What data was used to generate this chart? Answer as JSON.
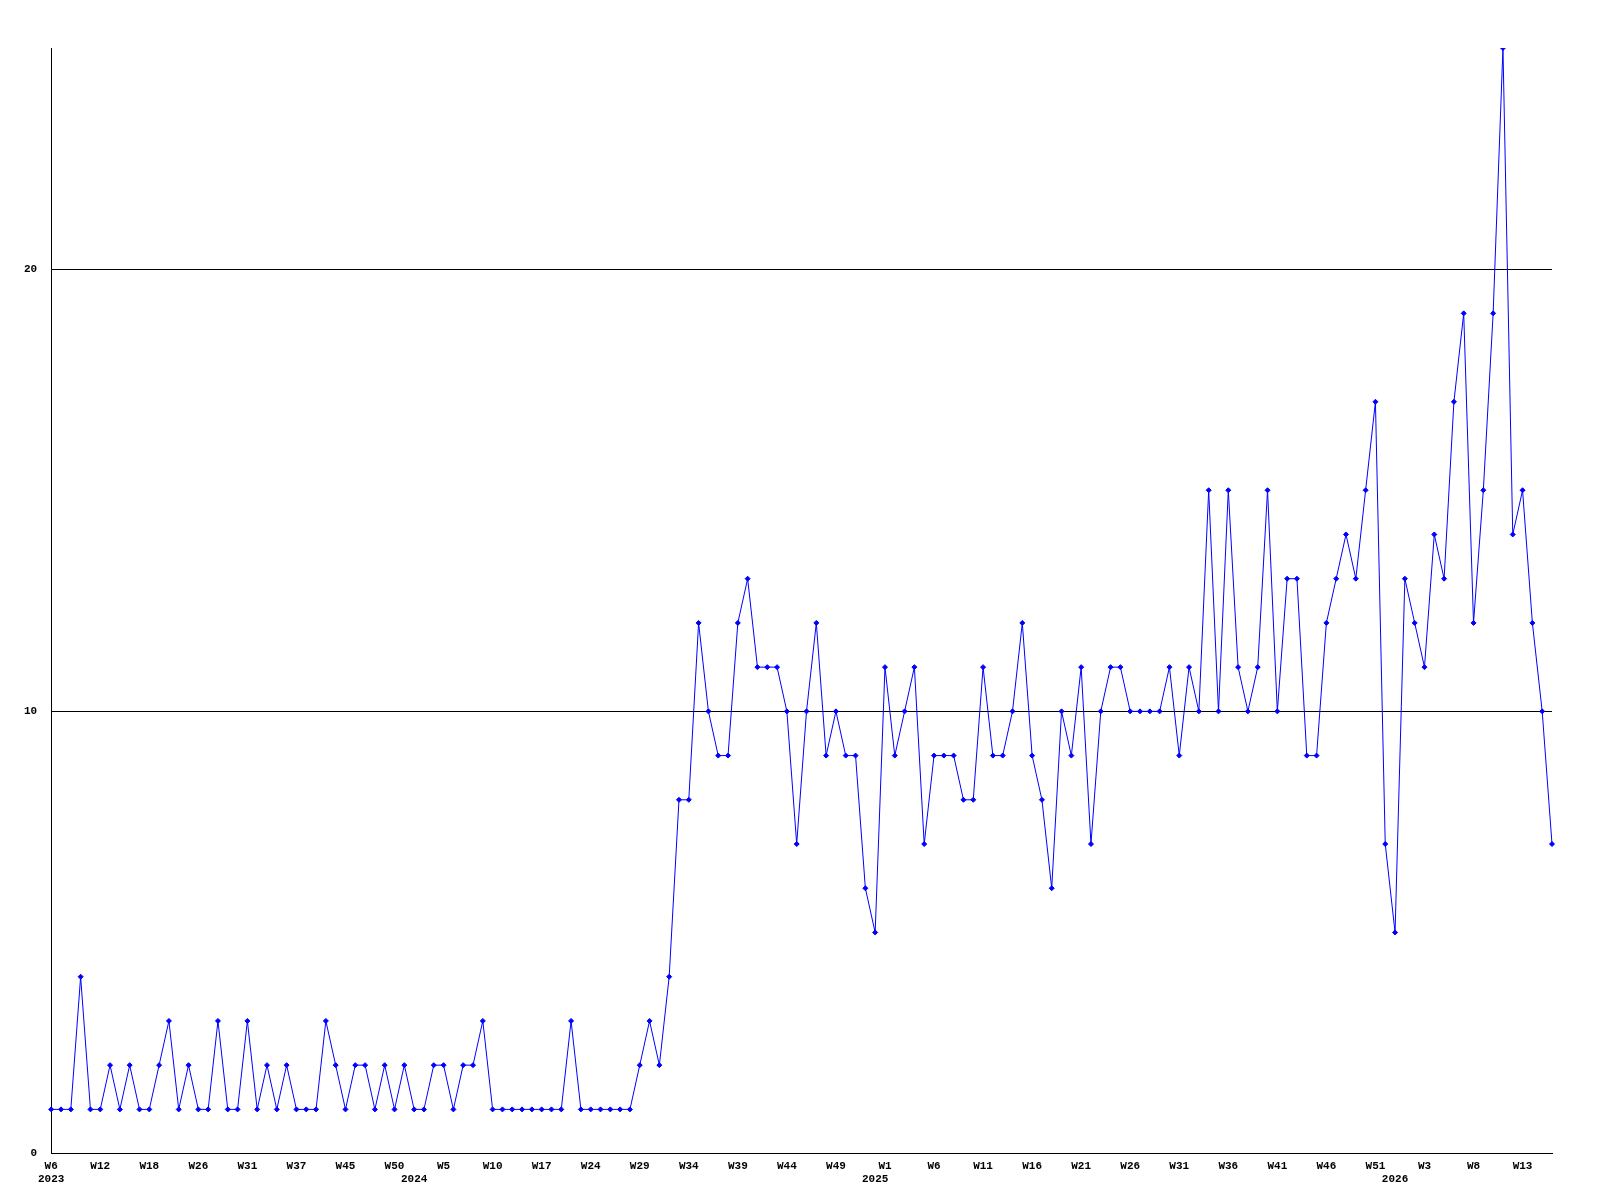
{
  "chart_data": {
    "type": "line",
    "categories": [
      "W6\n2023",
      null,
      null,
      null,
      null,
      "W12",
      null,
      null,
      null,
      null,
      "W18",
      null,
      null,
      null,
      null,
      "W26",
      null,
      null,
      null,
      null,
      "W31",
      null,
      null,
      null,
      null,
      "W37",
      null,
      null,
      null,
      null,
      "W45",
      null,
      null,
      null,
      null,
      "W50",
      null,
      "\n2024",
      null,
      null,
      "W5",
      null,
      null,
      null,
      null,
      "W10",
      null,
      null,
      null,
      null,
      "W17",
      null,
      null,
      null,
      null,
      "W24",
      null,
      null,
      null,
      null,
      "W29",
      null,
      null,
      null,
      null,
      "W34",
      null,
      null,
      null,
      null,
      "W39",
      null,
      null,
      null,
      null,
      "W44",
      null,
      null,
      null,
      null,
      "W49",
      null,
      null,
      null,
      "\n2025",
      "W1",
      null,
      null,
      null,
      null,
      "W6",
      null,
      null,
      null,
      null,
      "W11",
      null,
      null,
      null,
      null,
      "W16",
      null,
      null,
      null,
      null,
      "W21",
      null,
      null,
      null,
      null,
      "W26",
      null,
      null,
      null,
      null,
      "W31",
      null,
      null,
      null,
      null,
      "W36",
      null,
      null,
      null,
      null,
      "W41",
      null,
      null,
      null,
      null,
      "W46",
      null,
      null,
      null,
      null,
      "W51",
      null,
      "\n2026",
      null,
      null,
      "W3",
      null,
      null,
      null,
      null,
      "W8",
      null,
      null,
      null,
      null,
      "W13",
      null,
      null,
      null
    ],
    "series": [
      {
        "color": "#0000ff",
        "values": [
          1,
          1,
          1,
          4,
          1,
          1,
          2,
          1,
          2,
          1,
          1,
          2,
          3,
          1,
          2,
          1,
          1,
          3,
          1,
          1,
          3,
          1,
          2,
          1,
          2,
          1,
          1,
          1,
          3,
          2,
          1,
          2,
          2,
          1,
          2,
          1,
          2,
          1,
          1,
          2,
          2,
          1,
          2,
          2,
          3,
          1,
          1,
          1,
          1,
          1,
          1,
          1,
          1,
          3,
          1,
          1,
          1,
          1,
          1,
          1,
          2,
          3,
          2,
          4,
          8,
          8,
          12,
          10,
          9,
          9,
          12,
          13,
          11,
          11,
          11,
          10,
          7,
          10,
          12,
          9,
          10,
          9,
          9,
          6,
          5,
          11,
          9,
          10,
          11,
          7,
          9,
          9,
          9,
          8,
          8,
          11,
          9,
          9,
          10,
          12,
          9,
          8,
          6,
          10,
          9,
          11,
          7,
          10,
          11,
          11,
          10,
          10,
          10,
          10,
          11,
          9,
          11,
          10,
          15,
          10,
          15,
          11,
          10,
          11,
          15,
          10,
          13,
          13,
          9,
          9,
          12,
          13,
          14,
          13,
          15,
          17,
          7,
          5,
          13,
          12,
          11,
          14,
          13,
          17,
          19,
          12,
          15,
          19,
          25,
          14,
          15,
          12,
          10,
          7
        ]
      }
    ],
    "ylim": [
      0,
      25
    ],
    "yticks": [
      0,
      10,
      20
    ],
    "grid": "y",
    "marker": "diamond",
    "line_style": "solid"
  }
}
